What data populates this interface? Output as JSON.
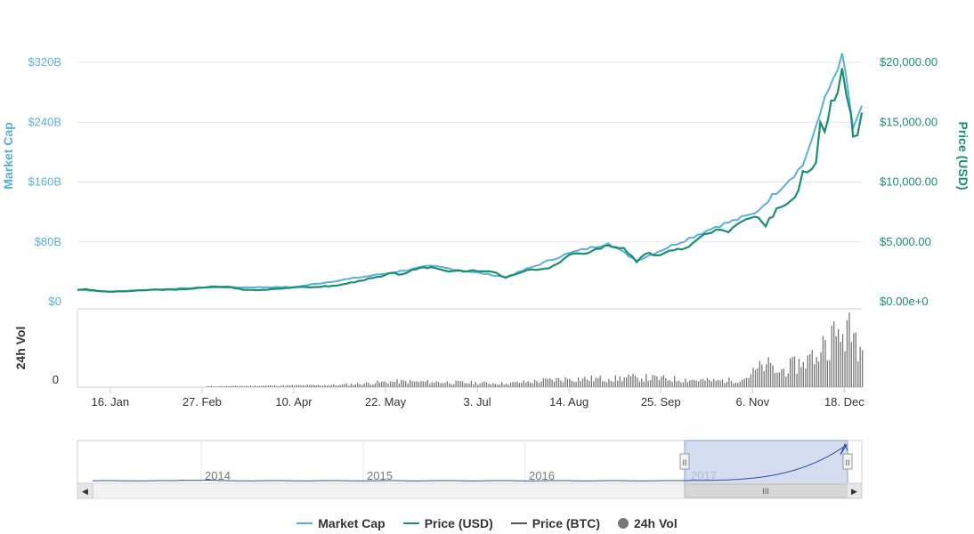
{
  "colors": {
    "market_cap": "#5aaee0",
    "price_usd": "#1a8f6e",
    "price_btc": "#555555",
    "volume": "#777777",
    "grid": "#e6e6e6",
    "navigator_fill": "#c5d0ea"
  },
  "axes": {
    "left_title": "Market Cap",
    "right_title": "Price (USD)",
    "volume_title": "24h Vol",
    "left_ticks": [
      "$0",
      "$80B",
      "$160B",
      "$240B",
      "$320B"
    ],
    "right_ticks": [
      "$0.00e+0",
      "$5,000.00",
      "$10,000.00",
      "$15,000.00",
      "$20,000.00"
    ],
    "volume_tick": "0",
    "x_ticks": [
      "16. Jan",
      "27. Feb",
      "10. Apr",
      "22. May",
      "3. Jul",
      "14. Aug",
      "25. Sep",
      "6. Nov",
      "18. Dec"
    ]
  },
  "navigator": {
    "years": [
      "2014",
      "2015",
      "2016",
      "2017"
    ],
    "handle_glyph": "II",
    "scroll_glyph": "III",
    "left_arrow": "◀",
    "right_arrow": "▶"
  },
  "legend": [
    {
      "label": "Market Cap",
      "kind": "line",
      "color": "#5aaee0"
    },
    {
      "label": "Price (USD)",
      "kind": "line",
      "color": "#1a8f6e"
    },
    {
      "label": "Price (BTC)",
      "kind": "line",
      "color": "#555555"
    },
    {
      "label": "24h Vol",
      "kind": "dot",
      "color": "#777777"
    }
  ],
  "chart_data": {
    "type": "line",
    "x_label_unit": "date",
    "ylim_market_cap_billion": [
      0,
      320
    ],
    "ylim_price_usd": [
      0,
      20000
    ],
    "series": [
      {
        "name": "Price (USD)",
        "points": [
          [
            "2017-01-01",
            1000
          ],
          [
            "2017-01-05",
            1050
          ],
          [
            "2017-01-10",
            900
          ],
          [
            "2017-01-16",
            830
          ],
          [
            "2017-01-25",
            890
          ],
          [
            "2017-02-05",
            1010
          ],
          [
            "2017-02-15",
            1000
          ],
          [
            "2017-02-27",
            1160
          ],
          [
            "2017-03-05",
            1270
          ],
          [
            "2017-03-12",
            1230
          ],
          [
            "2017-03-18",
            1000
          ],
          [
            "2017-03-25",
            970
          ],
          [
            "2017-04-01",
            1070
          ],
          [
            "2017-04-10",
            1200
          ],
          [
            "2017-04-20",
            1230
          ],
          [
            "2017-04-30",
            1350
          ],
          [
            "2017-05-10",
            1750
          ],
          [
            "2017-05-20",
            2100
          ],
          [
            "2017-05-25",
            2400
          ],
          [
            "2017-05-28",
            2250
          ],
          [
            "2017-06-05",
            2700
          ],
          [
            "2017-06-12",
            2900
          ],
          [
            "2017-06-18",
            2600
          ],
          [
            "2017-06-25",
            2600
          ],
          [
            "2017-07-03",
            2550
          ],
          [
            "2017-07-10",
            2500
          ],
          [
            "2017-07-16",
            2000
          ],
          [
            "2017-07-20",
            2250
          ],
          [
            "2017-07-28",
            2700
          ],
          [
            "2017-08-05",
            2800
          ],
          [
            "2017-08-10",
            3300
          ],
          [
            "2017-08-14",
            3900
          ],
          [
            "2017-08-20",
            4000
          ],
          [
            "2017-08-25",
            4300
          ],
          [
            "2017-09-01",
            4700
          ],
          [
            "2017-09-08",
            4500
          ],
          [
            "2017-09-14",
            3300
          ],
          [
            "2017-09-18",
            4000
          ],
          [
            "2017-09-25",
            3900
          ],
          [
            "2017-10-01",
            4300
          ],
          [
            "2017-10-08",
            4600
          ],
          [
            "2017-10-13",
            5400
          ],
          [
            "2017-10-20",
            6000
          ],
          [
            "2017-10-26",
            5800
          ],
          [
            "2017-11-01",
            6700
          ],
          [
            "2017-11-07",
            7100
          ],
          [
            "2017-11-12",
            6300
          ],
          [
            "2017-11-17",
            7800
          ],
          [
            "2017-11-22",
            8200
          ],
          [
            "2017-11-27",
            9300
          ],
          [
            "2017-11-29",
            10900
          ],
          [
            "2017-12-01",
            10800
          ],
          [
            "2017-12-05",
            11600
          ],
          [
            "2017-12-07",
            15000
          ],
          [
            "2017-12-09",
            14200
          ],
          [
            "2017-12-12",
            16800
          ],
          [
            "2017-12-15",
            17500
          ],
          [
            "2017-12-17",
            19500
          ],
          [
            "2017-12-19",
            17200
          ],
          [
            "2017-12-21",
            15700
          ],
          [
            "2017-12-22",
            13800
          ],
          [
            "2017-12-24",
            13900
          ],
          [
            "2017-12-26",
            15800
          ]
        ]
      },
      {
        "name": "Market Cap",
        "unit": "billion USD",
        "points": [
          [
            "2017-01-01",
            16
          ],
          [
            "2017-01-16",
            13.5
          ],
          [
            "2017-02-27",
            19
          ],
          [
            "2017-04-10",
            19.5
          ],
          [
            "2017-05-25",
            39
          ],
          [
            "2017-06-12",
            48
          ],
          [
            "2017-07-16",
            33
          ],
          [
            "2017-08-14",
            65
          ],
          [
            "2017-09-01",
            78
          ],
          [
            "2017-09-14",
            55
          ],
          [
            "2017-10-20",
            100
          ],
          [
            "2017-11-07",
            118
          ],
          [
            "2017-11-29",
            182
          ],
          [
            "2017-12-07",
            252
          ],
          [
            "2017-12-17",
            332
          ],
          [
            "2017-12-22",
            232
          ],
          [
            "2017-12-26",
            262
          ]
        ]
      },
      {
        "name": "24h Vol",
        "unit": "billion USD",
        "ylim": [
          0,
          20
        ],
        "points": [
          [
            "2017-03-01",
            0.2
          ],
          [
            "2017-05-01",
            0.6
          ],
          [
            "2017-05-25",
            1.5
          ],
          [
            "2017-06-12",
            1.4
          ],
          [
            "2017-07-16",
            1.0
          ],
          [
            "2017-08-14",
            2.3
          ],
          [
            "2017-09-01",
            2.2
          ],
          [
            "2017-09-14",
            2.6
          ],
          [
            "2017-10-20",
            1.7
          ],
          [
            "2017-11-01",
            2.0
          ],
          [
            "2017-11-12",
            6.2
          ],
          [
            "2017-11-17",
            4.0
          ],
          [
            "2017-11-29",
            6.8
          ],
          [
            "2017-12-07",
            9.5
          ],
          [
            "2017-12-09",
            12.8
          ],
          [
            "2017-12-17",
            14.4
          ],
          [
            "2017-12-22",
            14.6
          ],
          [
            "2017-12-26",
            10.0
          ]
        ]
      }
    ]
  }
}
